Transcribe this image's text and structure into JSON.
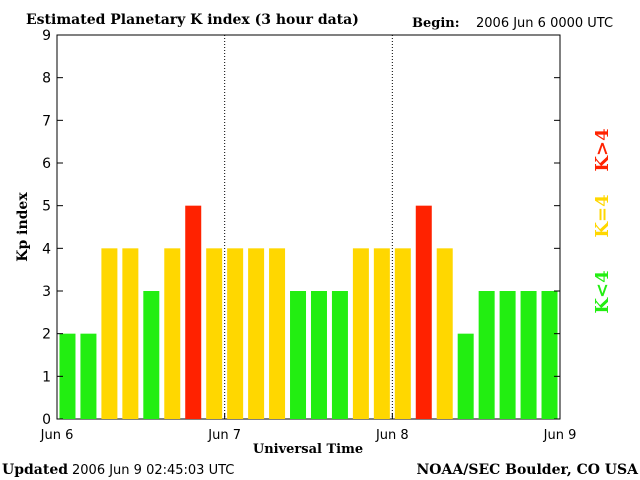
{
  "chart_data": {
    "type": "bar",
    "title": "Estimated Planetary K index (3 hour data)",
    "begin_label": "Begin:",
    "begin_value": "2006 Jun 6 0000 UTC",
    "ylabel": "Kp index",
    "xlabel": "Universal Time",
    "ylim": [
      0,
      9
    ],
    "yticks": [
      "0",
      "1",
      "2",
      "3",
      "4",
      "5",
      "6",
      "7",
      "8",
      "9"
    ],
    "xticks": [
      "Jun 6",
      "Jun 7",
      "Jun 8",
      "Jun 9"
    ],
    "values": [
      2,
      2,
      4,
      4,
      3,
      4,
      5,
      4,
      4,
      4,
      4,
      3,
      3,
      3,
      4,
      4,
      4,
      5,
      4,
      2,
      3,
      3,
      3,
      3
    ],
    "colors": {
      "low": "#22ee11",
      "mid": "#ffd700",
      "high": "#ff2200"
    },
    "legend": {
      "low": "K<4",
      "mid": "K=4",
      "high": "K>4"
    }
  },
  "footer": {
    "updated_label": "Updated",
    "updated_value": "2006 Jun  9 02:45:03 UTC",
    "credit": "NOAA/SEC Boulder, CO USA"
  }
}
